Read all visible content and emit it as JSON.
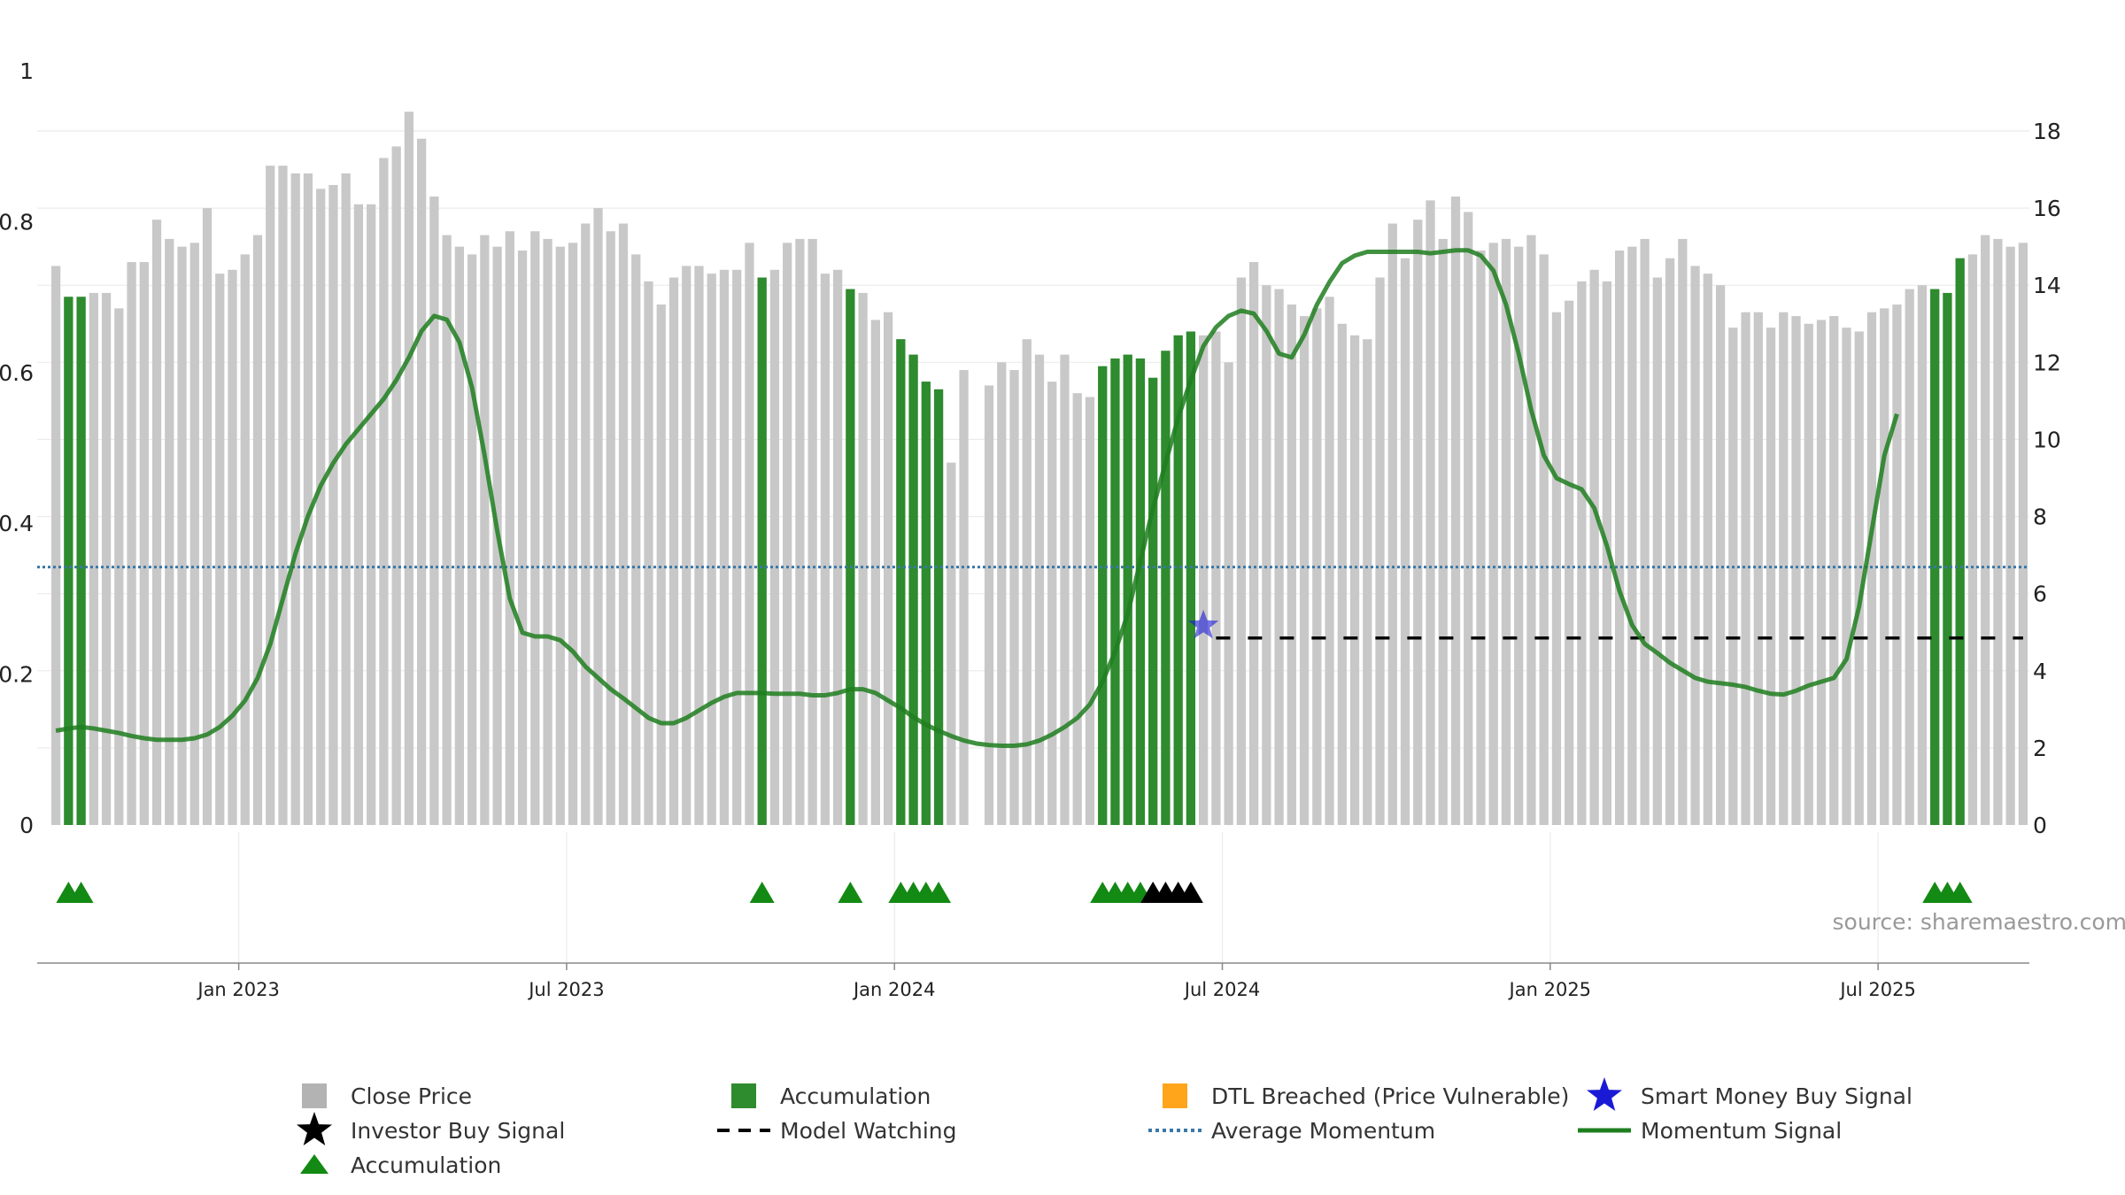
{
  "chart_data": {
    "type": "bar",
    "left_axis": {
      "ylim": [
        0,
        1
      ],
      "ticks": [
        "0",
        "0.2",
        "0.4",
        "0.6",
        "0.8",
        "1"
      ],
      "tick_values": [
        0,
        0.2,
        0.4,
        0.6,
        0.8,
        1
      ]
    },
    "right_axis": {
      "ylim": [
        0,
        20.7
      ],
      "ticks": [
        "0",
        "2",
        "4",
        "6",
        "8",
        "10",
        "12",
        "14",
        "16",
        "18"
      ],
      "tick_values": [
        0,
        2,
        4,
        6,
        8,
        10,
        12,
        14,
        16,
        18
      ]
    },
    "x_axis": {
      "ticks": [
        "Jan 2023",
        "Jul 2023",
        "Jan 2024",
        "Jul 2024",
        "Jan 2025",
        "Jul 2025"
      ],
      "tick_weeks": [
        15,
        41,
        67,
        93,
        119,
        145
      ]
    },
    "weeks": 157,
    "close_price": [
      14.5,
      13.7,
      13.7,
      13.8,
      13.8,
      13.4,
      14.6,
      14.6,
      15.7,
      15.2,
      15.0,
      15.1,
      16.0,
      14.3,
      14.4,
      14.8,
      15.3,
      17.1,
      17.1,
      16.9,
      16.9,
      16.5,
      16.6,
      16.9,
      16.1,
      16.1,
      17.3,
      17.6,
      18.5,
      17.8,
      16.3,
      15.3,
      15.0,
      14.8,
      15.3,
      15.0,
      15.4,
      14.9,
      15.4,
      15.2,
      15.0,
      15.1,
      15.6,
      16.0,
      15.4,
      15.6,
      14.8,
      14.1,
      13.5,
      14.2,
      14.5,
      14.5,
      14.3,
      14.4,
      14.4,
      15.1,
      14.2,
      14.4,
      15.1,
      15.2,
      15.2,
      14.3,
      14.4,
      13.9,
      13.8,
      13.1,
      13.3,
      12.6,
      12.2,
      11.5,
      11.3,
      9.4,
      11.8,
      null,
      11.4,
      12.0,
      11.8,
      12.6,
      12.2,
      11.5,
      12.2,
      11.2,
      11.1,
      11.9,
      12.1,
      12.2,
      12.1,
      11.6,
      12.3,
      12.7,
      12.8,
      12.7,
      12.8,
      12.0,
      14.2,
      14.6,
      14.0,
      13.9,
      13.5,
      13.2,
      13.4,
      13.7,
      13.0,
      12.7,
      12.6,
      14.2,
      15.6,
      14.7,
      15.7,
      16.2,
      15.2,
      16.3,
      15.9,
      14.9,
      15.1,
      15.2,
      15.0,
      15.3,
      14.8,
      13.3,
      13.6,
      14.1,
      14.4,
      14.1,
      14.9,
      15.0,
      15.2,
      14.2,
      14.7,
      15.2,
      14.5,
      14.3,
      14.0,
      12.9,
      13.3,
      13.3,
      12.9,
      13.3,
      13.2,
      13.0,
      13.1,
      13.2,
      12.9,
      12.8,
      13.3,
      13.4,
      13.5,
      13.9,
      14.0,
      13.9,
      13.8,
      14.7,
      14.8,
      15.3,
      15.2,
      15.0,
      15.1
    ],
    "accumulation_weeks": [
      1,
      2,
      56,
      63,
      67,
      68,
      69,
      70,
      83,
      84,
      85,
      86,
      87,
      88,
      89,
      90,
      149,
      150,
      151
    ],
    "accumulation_value": 0.72,
    "momentum_signal": [
      0.125,
      0.128,
      0.13,
      0.128,
      0.125,
      0.122,
      0.118,
      0.115,
      0.113,
      0.113,
      0.113,
      0.115,
      0.12,
      0.13,
      0.145,
      0.165,
      0.195,
      0.24,
      0.3,
      0.36,
      0.41,
      0.45,
      0.48,
      0.505,
      0.525,
      0.545,
      0.565,
      0.59,
      0.62,
      0.655,
      0.675,
      0.67,
      0.64,
      0.58,
      0.49,
      0.39,
      0.3,
      0.255,
      0.25,
      0.25,
      0.245,
      0.23,
      0.21,
      0.195,
      0.18,
      0.168,
      0.155,
      0.142,
      0.135,
      0.135,
      0.142,
      0.152,
      0.162,
      0.17,
      0.175,
      0.175,
      0.175,
      0.174,
      0.174,
      0.174,
      0.172,
      0.172,
      0.175,
      0.18,
      0.18,
      0.175,
      0.165,
      0.155,
      0.143,
      0.133,
      0.125,
      0.118,
      0.112,
      0.108,
      0.106,
      0.105,
      0.105,
      0.107,
      0.112,
      0.12,
      0.13,
      0.142,
      0.16,
      0.19,
      0.23,
      0.28,
      0.35,
      0.42,
      0.48,
      0.54,
      0.59,
      0.635,
      0.66,
      0.675,
      0.682,
      0.678,
      0.655,
      0.625,
      0.62,
      0.65,
      0.69,
      0.72,
      0.745,
      0.755,
      0.76,
      0.76,
      0.76,
      0.76,
      0.76,
      0.758,
      0.76,
      0.762,
      0.762,
      0.755,
      0.735,
      0.69,
      0.625,
      0.55,
      0.49,
      0.46,
      0.452,
      0.445,
      0.42,
      0.37,
      0.31,
      0.265,
      0.24,
      0.228,
      0.215,
      0.205,
      0.195,
      0.19,
      0.188,
      0.186,
      0.183,
      0.178,
      0.174,
      0.173,
      0.178,
      0.185,
      0.19,
      0.195,
      0.22,
      0.29,
      0.39,
      0.49,
      0.545
    ],
    "average_momentum": 0.342,
    "model_watching_from_week": 92,
    "model_watching_value": 0.248,
    "smart_money_buy_signal": {
      "week": 91,
      "value": 0.255
    },
    "accumulation_markers": [
      1,
      2,
      56,
      63,
      67,
      68,
      69,
      70,
      83,
      84,
      85,
      86,
      87,
      149,
      150,
      151
    ],
    "investor_buy_markers": [
      87,
      88,
      89,
      90
    ],
    "source": "source: sharemaestro.com",
    "legend": [
      {
        "label": "Close Price",
        "symbol": "gray-square"
      },
      {
        "label": "Accumulation",
        "symbol": "green-square"
      },
      {
        "label": "DTL Breached (Price Vulnerable)",
        "symbol": "orange-square"
      },
      {
        "label": "Smart Money Buy Signal",
        "symbol": "blue-star"
      },
      {
        "label": "Investor Buy Signal",
        "symbol": "black-star"
      },
      {
        "label": "Model Watching",
        "symbol": "black-dash"
      },
      {
        "label": "Average Momentum",
        "symbol": "blue-dotted"
      },
      {
        "label": "Momentum Signal",
        "symbol": "green-line"
      },
      {
        "label": "Accumulation",
        "symbol": "green-triangle"
      }
    ],
    "colors": {
      "close_price": "#c8c8c8",
      "accumulation": "#2e8b2e",
      "dtl_breached": "#ffa51c",
      "smart_money": "#1a1ad6",
      "investor": "#000000",
      "model_watching": "#000000",
      "average_momentum": "#3a78a8",
      "momentum_signal": "#1e7e1e",
      "triangle": "#138a13"
    }
  }
}
